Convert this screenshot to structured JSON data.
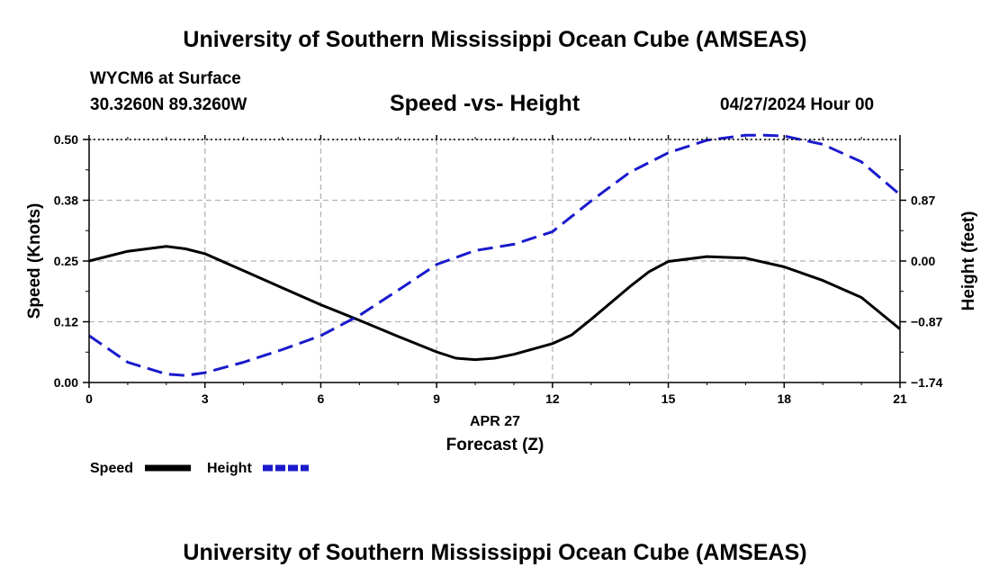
{
  "header": {
    "title": "University of Southern Mississippi Ocean Cube (AMSEAS)",
    "station": "WYCM6 at Surface",
    "coords": "30.3260N  89.3260W",
    "chart_title": "Speed -vs- Height",
    "datetime": "04/27/2024 Hour 00"
  },
  "footer": {
    "title": "University of Southern Mississippi Ocean Cube (AMSEAS)"
  },
  "colors": {
    "speed": "#000000",
    "height": "#1a1acc",
    "grid": "#b4b4b4"
  },
  "chart_data": {
    "type": "line",
    "title": "Speed -vs- Height",
    "xlabel": "Forecast (Z)",
    "xsublabel": "APR 27",
    "ylabel": "Speed (Knots)",
    "y2label": "Height (feet)",
    "xlim": [
      0,
      21
    ],
    "ylim": [
      0,
      0.5
    ],
    "y2lim": [
      -1.74,
      1.74
    ],
    "xticks": [
      0,
      3,
      6,
      9,
      12,
      15,
      18,
      21
    ],
    "yticks": [
      0.0,
      0.125,
      0.25,
      0.375,
      0.5
    ],
    "ytick_labels": [
      "0.00",
      "0.12",
      "0.25",
      "0.38",
      "0.50"
    ],
    "y2ticks": [
      -1.74,
      -0.87,
      0.0,
      0.87
    ],
    "y2tick_labels": [
      "−1.74",
      "−0.87",
      "0.00",
      "0.87"
    ],
    "grid": true,
    "legend": [
      "Speed",
      "Height"
    ],
    "series": [
      {
        "name": "Speed",
        "axis": "left",
        "style": "solid",
        "x": [
          0,
          1,
          2,
          2.5,
          3,
          4,
          5,
          6,
          7,
          8,
          9,
          9.5,
          10,
          10.5,
          11,
          12,
          12.5,
          13,
          14,
          14.5,
          15,
          16,
          17,
          18,
          19,
          20,
          21
        ],
        "values": [
          0.25,
          0.27,
          0.28,
          0.275,
          0.265,
          0.23,
          0.195,
          0.16,
          0.128,
          0.095,
          0.063,
          0.05,
          0.047,
          0.05,
          0.058,
          0.08,
          0.098,
          0.13,
          0.197,
          0.228,
          0.249,
          0.259,
          0.256,
          0.238,
          0.21,
          0.175,
          0.11
        ]
      },
      {
        "name": "Height",
        "axis": "right",
        "style": "dashed",
        "x": [
          0,
          1,
          2,
          2.5,
          3,
          4,
          5,
          6,
          7,
          8,
          9,
          10,
          11,
          12,
          13,
          14,
          15,
          16,
          17,
          17.5,
          18,
          19,
          20,
          21
        ],
        "values": [
          -1.07,
          -1.45,
          -1.62,
          -1.64,
          -1.6,
          -1.45,
          -1.27,
          -1.07,
          -0.78,
          -0.42,
          -0.05,
          0.15,
          0.24,
          0.42,
          0.86,
          1.27,
          1.55,
          1.73,
          1.8,
          1.8,
          1.79,
          1.67,
          1.42,
          0.95
        ]
      }
    ]
  }
}
